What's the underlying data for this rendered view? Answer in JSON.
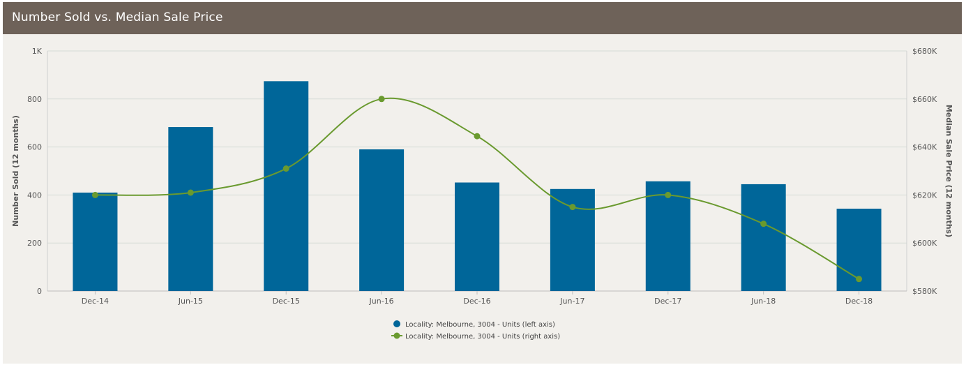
{
  "header": {
    "title": "Number Sold vs. Median Sale Price"
  },
  "colors": {
    "header_bg": "#6e6259",
    "bar": "#006699",
    "line": "#6a9a2f",
    "panel_bg": "#f2f0ec"
  },
  "chart_data": {
    "type": "bar+line",
    "categories": [
      "Dec-14",
      "Jun-15",
      "Dec-15",
      "Jun-16",
      "Dec-16",
      "Jun-17",
      "Dec-17",
      "Jun-18",
      "Dec-18"
    ],
    "series": [
      {
        "name": "Locality: Melbourne, 3004 - Units (left axis)",
        "type": "bar",
        "axis": "left",
        "values": [
          410,
          683,
          874,
          590,
          452,
          425,
          457,
          445,
          343
        ]
      },
      {
        "name": "Locality: Melbourne, 3004 - Units (right axis)",
        "type": "line",
        "axis": "right",
        "values": [
          620000,
          621000,
          631000,
          660000,
          644500,
          615000,
          620000,
          608000,
          585000
        ]
      }
    ],
    "left_axis": {
      "label": "Number Sold (12 months)",
      "ylim": [
        0,
        1000
      ],
      "ticks": [
        "0",
        "200",
        "400",
        "600",
        "800",
        "1K"
      ]
    },
    "right_axis": {
      "label": "Median Sale Price (12 months)",
      "ylim": [
        580000,
        680000
      ],
      "ticks": [
        "$580K",
        "$600K",
        "$620K",
        "$640K",
        "$660K",
        "$680K"
      ]
    },
    "grid": true,
    "legend_position": "bottom-center"
  }
}
